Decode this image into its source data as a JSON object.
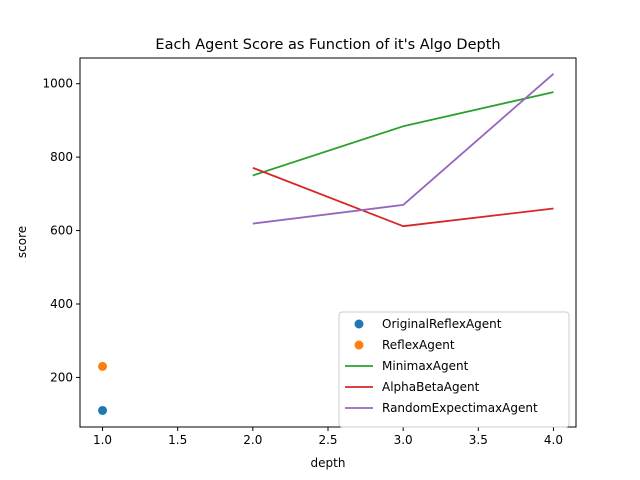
{
  "chart_data": {
    "type": "line",
    "title": "Each Agent Score as Function of it's Algo Depth",
    "xlabel": "depth",
    "ylabel": "score",
    "xlim": [
      0.85,
      4.15
    ],
    "ylim": [
      65,
      1070
    ],
    "xticks": [
      1.0,
      1.5,
      2.0,
      2.5,
      3.0,
      3.5,
      4.0
    ],
    "xtick_labels": [
      "1.0",
      "1.5",
      "2.0",
      "2.5",
      "3.0",
      "3.5",
      "4.0"
    ],
    "yticks": [
      200,
      400,
      600,
      800,
      1000
    ],
    "ytick_labels": [
      "200",
      "400",
      "600",
      "800",
      "1000"
    ],
    "grid": false,
    "legend_position": "lower-right",
    "series": [
      {
        "name": "OriginalReflexAgent",
        "kind": "marker",
        "color": "#1f77b4",
        "x": [
          1.0
        ],
        "y": [
          110
        ]
      },
      {
        "name": "ReflexAgent",
        "kind": "marker",
        "color": "#ff7f0e",
        "x": [
          1.0
        ],
        "y": [
          230
        ]
      },
      {
        "name": "MinimaxAgent",
        "kind": "line",
        "color": "#2ca02c",
        "x": [
          2.0,
          3.0,
          4.0
        ],
        "y": [
          750,
          884,
          977
        ]
      },
      {
        "name": "AlphaBetaAgent",
        "kind": "line",
        "color": "#d62728",
        "x": [
          2.0,
          3.0,
          4.0
        ],
        "y": [
          771,
          612,
          660
        ]
      },
      {
        "name": "RandomExpectimaxAgent",
        "kind": "line",
        "color": "#9467bd",
        "x": [
          2.0,
          3.0,
          4.0
        ],
        "y": [
          619,
          670,
          1027
        ]
      }
    ]
  }
}
